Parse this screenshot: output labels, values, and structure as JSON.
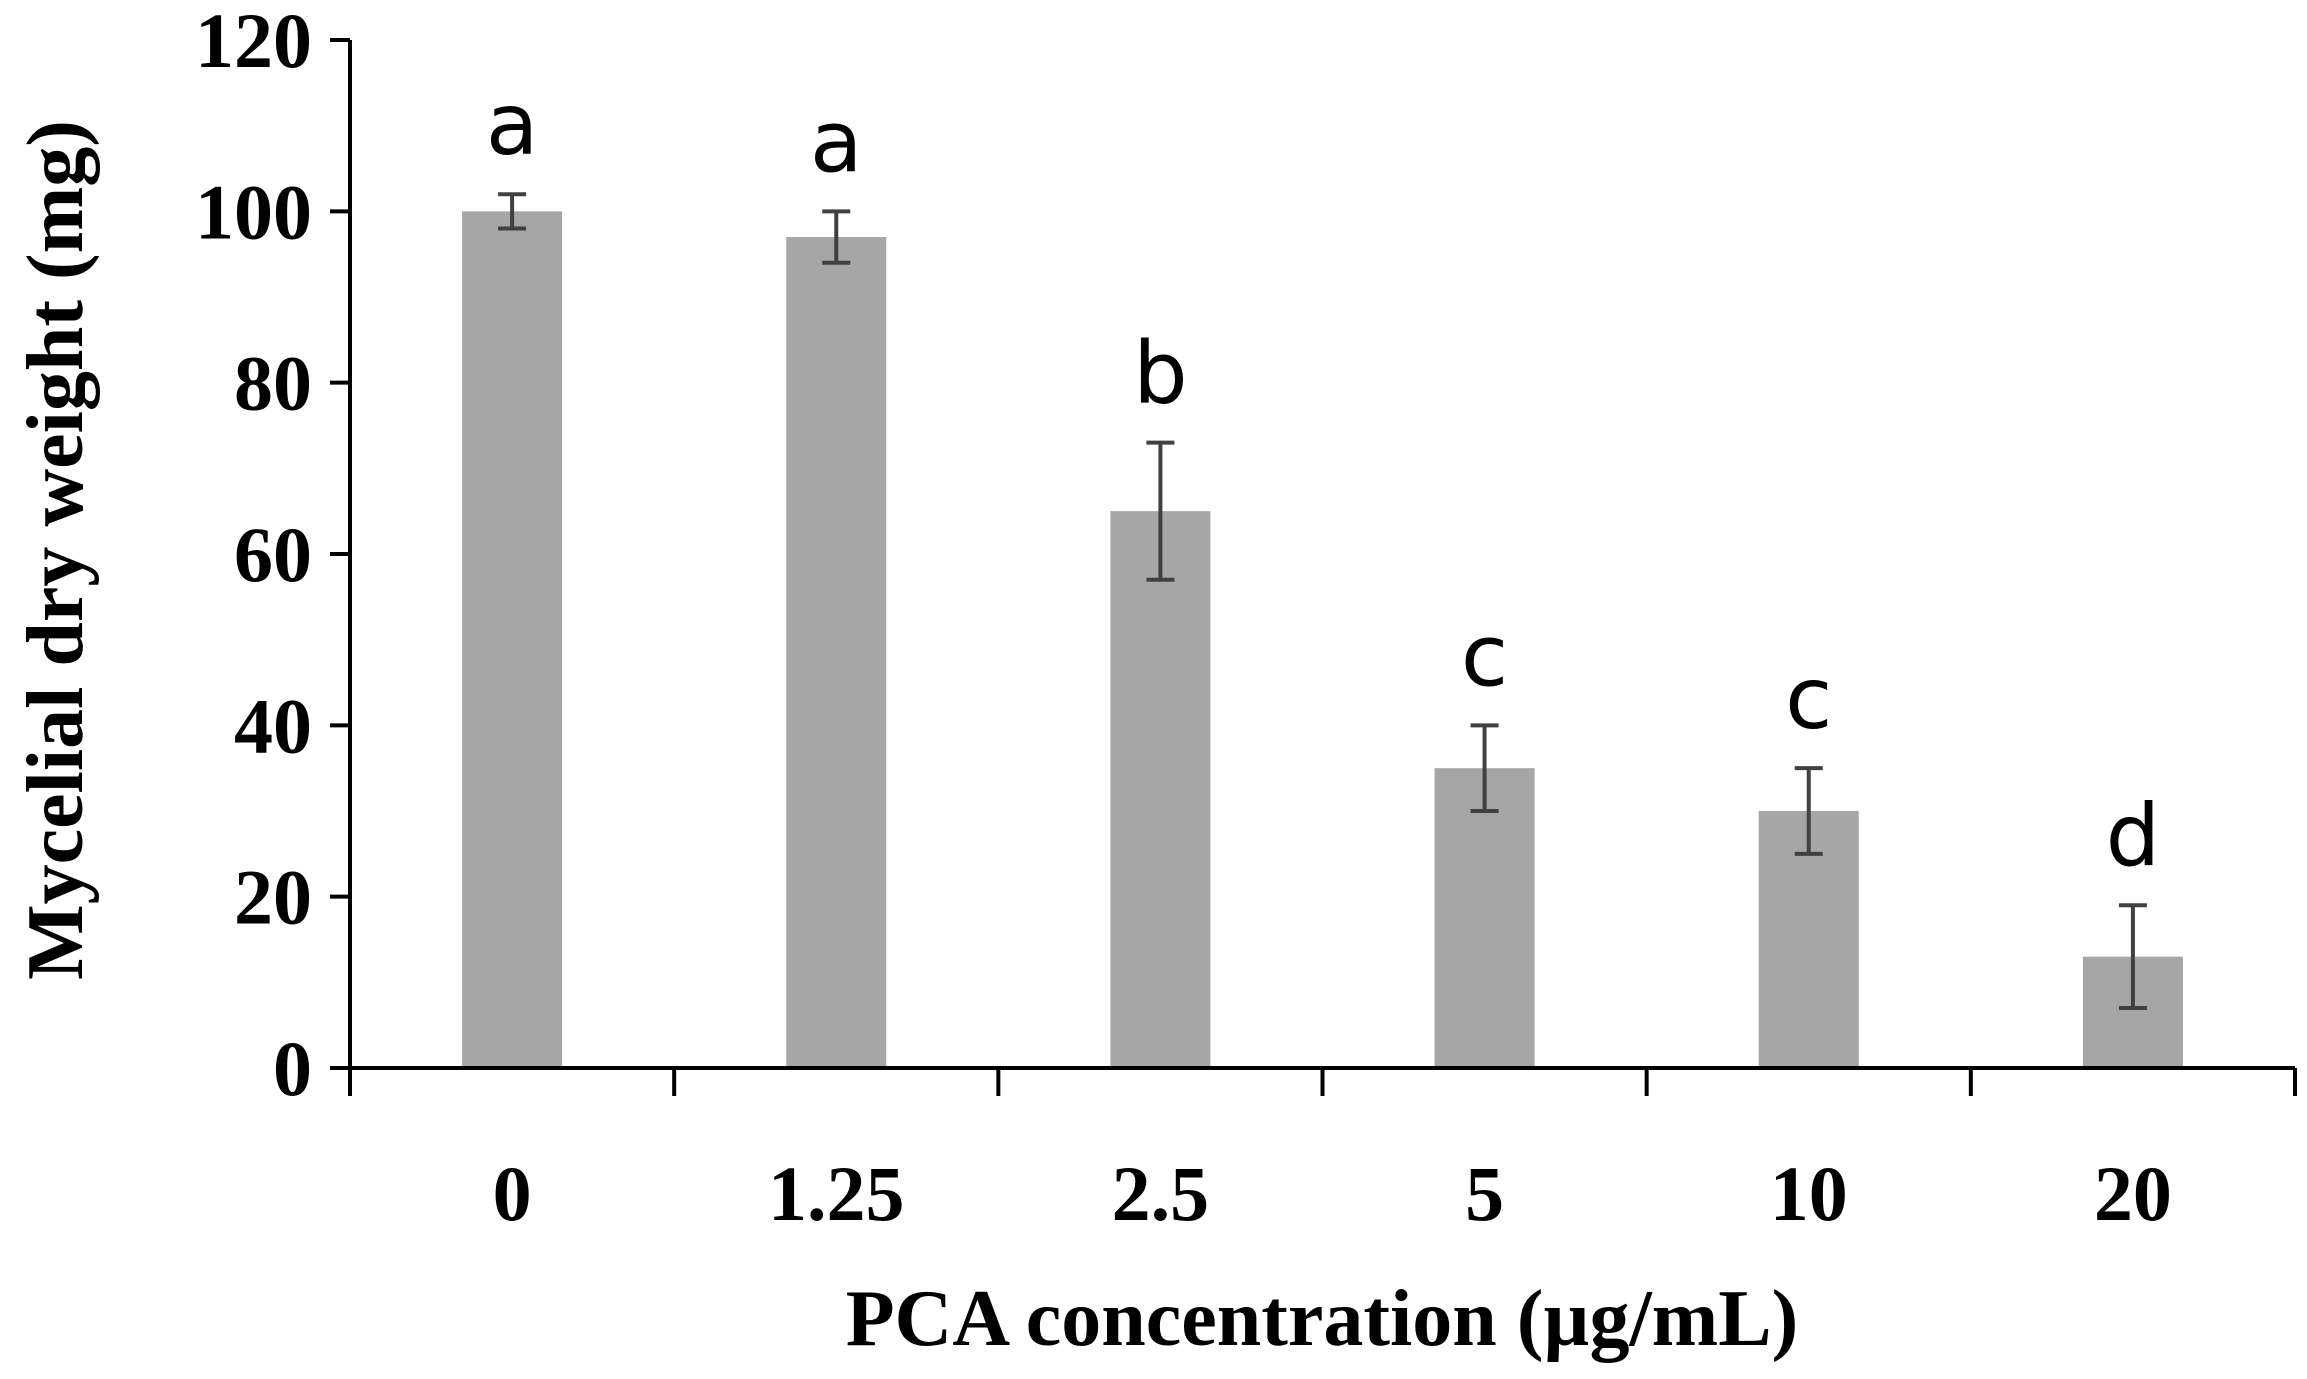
{
  "chart_data": {
    "type": "bar",
    "categories": [
      "0",
      "1.25",
      "2.5",
      "5",
      "10",
      "20"
    ],
    "values": [
      100,
      97,
      65,
      35,
      30,
      13
    ],
    "errors": [
      2,
      3,
      8,
      5,
      5,
      6
    ],
    "significance_letters": [
      "a",
      "a",
      "b",
      "c",
      "c",
      "d"
    ],
    "xlabel": "PCA concentration (µg/mL)",
    "ylabel": "Mycelial dry weight (mg)",
    "ylim": [
      0,
      120
    ],
    "yticks": [
      "0",
      "20",
      "40",
      "60",
      "80",
      "100",
      "120"
    ],
    "grid": false,
    "bar_color": "#a6a6a6",
    "error_bar_color": "#404040"
  }
}
